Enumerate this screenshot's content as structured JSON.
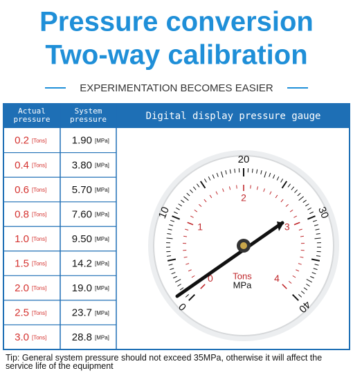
{
  "header": {
    "title": "Pressure conversion",
    "subtitle": "Two-way calibration",
    "tagline": "EXPERIMENTATION BECOMES EASIER"
  },
  "table": {
    "columns": [
      "Actual pressure",
      "System pressure",
      "Digital display pressure gauge"
    ],
    "rows": [
      [
        "0.2",
        "[Tons]",
        "1.90",
        "[MPa]"
      ],
      [
        "0.4",
        "[Tons]",
        "3.80",
        "[MPa]"
      ],
      [
        "0.6",
        "[Tons]",
        "5.70",
        "[MPa]"
      ],
      [
        "0.8",
        "[Tons]",
        "7.60",
        "[MPa]"
      ],
      [
        "1.0",
        "[Tons]",
        "9.50",
        "[MPa]"
      ],
      [
        "1.5",
        "[Tons]",
        "14.2",
        "[MPa]"
      ],
      [
        "2.0",
        "[Tons]",
        "19.0",
        "[MPa]"
      ],
      [
        "2.5",
        "[Tons]",
        "23.7",
        "[MPa]"
      ],
      [
        "3.0",
        "[Tons]",
        "28.8",
        "[MPa]"
      ]
    ]
  },
  "gauge": {
    "mpa_scale": [
      "0",
      "10",
      "20",
      "30",
      "40"
    ],
    "tons_scale": [
      "0",
      "1",
      "2",
      "3",
      "4"
    ],
    "tons_unit": "Tons",
    "mpa_unit": "MPa"
  },
  "tip": "Tip: General system pressure should not exceed 35MPa, otherwise it will affect the service life of the equipment"
}
